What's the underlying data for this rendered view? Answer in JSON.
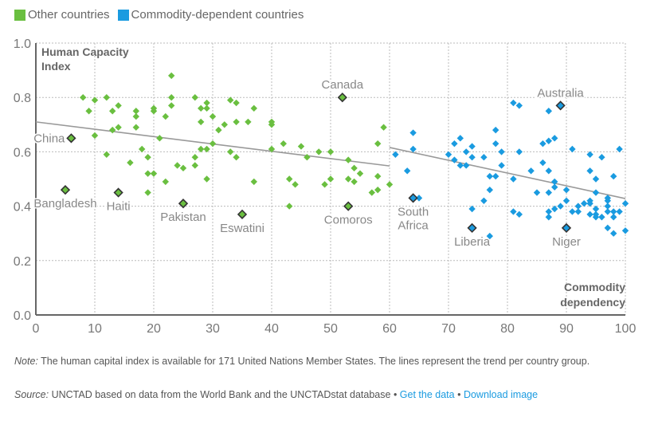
{
  "legend": [
    {
      "label": "Other countries",
      "color": "#6abf40"
    },
    {
      "label": "Commodity-dependent countries",
      "color": "#1a9be0"
    }
  ],
  "chart_data": {
    "type": "scatter",
    "title": "",
    "ylabel": "Human Capacity Index",
    "xlabel": "Commodity dependency",
    "xlim": [
      0,
      100
    ],
    "ylim": [
      0,
      1.0
    ],
    "xticks": [
      0,
      10,
      20,
      30,
      40,
      50,
      60,
      70,
      80,
      90,
      100
    ],
    "yticks": [
      "0.0",
      "0.2",
      "0.4",
      "0.6",
      "0.8",
      "1.0"
    ],
    "grid": true,
    "legend_position": "top-left",
    "series": [
      {
        "name": "Other countries",
        "color": "#6abf40",
        "points": [
          [
            8,
            0.8
          ],
          [
            10,
            0.79
          ],
          [
            12,
            0.8
          ],
          [
            9,
            0.75
          ],
          [
            13,
            0.75
          ],
          [
            14,
            0.77
          ],
          [
            17,
            0.75
          ],
          [
            17,
            0.73
          ],
          [
            20,
            0.76
          ],
          [
            20,
            0.75
          ],
          [
            13,
            0.68
          ],
          [
            14,
            0.69
          ],
          [
            17,
            0.69
          ],
          [
            10,
            0.66
          ],
          [
            12,
            0.59
          ],
          [
            18,
            0.61
          ],
          [
            16,
            0.56
          ],
          [
            19,
            0.58
          ],
          [
            19,
            0.52
          ],
          [
            20,
            0.52
          ],
          [
            19,
            0.45
          ],
          [
            23,
            0.88
          ],
          [
            23,
            0.8
          ],
          [
            23,
            0.77
          ],
          [
            22,
            0.73
          ],
          [
            27,
            0.8
          ],
          [
            28,
            0.76
          ],
          [
            29,
            0.78
          ],
          [
            29,
            0.76
          ],
          [
            28,
            0.71
          ],
          [
            30,
            0.73
          ],
          [
            33,
            0.79
          ],
          [
            34,
            0.78
          ],
          [
            37,
            0.76
          ],
          [
            32,
            0.7
          ],
          [
            31,
            0.68
          ],
          [
            34,
            0.71
          ],
          [
            36,
            0.71
          ],
          [
            21,
            0.65
          ],
          [
            30,
            0.63
          ],
          [
            28,
            0.61
          ],
          [
            29,
            0.61
          ],
          [
            33,
            0.6
          ],
          [
            34,
            0.58
          ],
          [
            27,
            0.58
          ],
          [
            24,
            0.55
          ],
          [
            25,
            0.54
          ],
          [
            27,
            0.55
          ],
          [
            22,
            0.49
          ],
          [
            29,
            0.5
          ],
          [
            37,
            0.49
          ],
          [
            40,
            0.71
          ],
          [
            40,
            0.7
          ],
          [
            59,
            0.69
          ],
          [
            42,
            0.63
          ],
          [
            45,
            0.62
          ],
          [
            40,
            0.61
          ],
          [
            48,
            0.6
          ],
          [
            50,
            0.6
          ],
          [
            58,
            0.63
          ],
          [
            46,
            0.58
          ],
          [
            53,
            0.57
          ],
          [
            54,
            0.54
          ],
          [
            55,
            0.52
          ],
          [
            43,
            0.5
          ],
          [
            44,
            0.48
          ],
          [
            49,
            0.48
          ],
          [
            50,
            0.5
          ],
          [
            53,
            0.5
          ],
          [
            54,
            0.49
          ],
          [
            58,
            0.51
          ],
          [
            57,
            0.45
          ],
          [
            58,
            0.46
          ],
          [
            60,
            0.48
          ],
          [
            43,
            0.4
          ]
        ],
        "trend": [
          [
            0,
            0.71
          ],
          [
            60,
            0.548
          ]
        ]
      },
      {
        "name": "Commodity-dependent countries",
        "color": "#1a9be0",
        "points": [
          [
            61,
            0.59
          ],
          [
            64,
            0.67
          ],
          [
            64,
            0.61
          ],
          [
            63,
            0.53
          ],
          [
            65,
            0.43
          ],
          [
            70,
            0.59
          ],
          [
            71,
            0.63
          ],
          [
            72,
            0.65
          ],
          [
            71,
            0.57
          ],
          [
            72,
            0.55
          ],
          [
            73,
            0.55
          ],
          [
            73,
            0.6
          ],
          [
            74,
            0.62
          ],
          [
            74,
            0.58
          ],
          [
            76,
            0.58
          ],
          [
            78,
            0.68
          ],
          [
            78,
            0.63
          ],
          [
            79,
            0.6
          ],
          [
            79,
            0.55
          ],
          [
            77,
            0.51
          ],
          [
            78,
            0.51
          ],
          [
            77,
            0.46
          ],
          [
            76,
            0.42
          ],
          [
            74,
            0.39
          ],
          [
            77,
            0.29
          ],
          [
            81,
            0.78
          ],
          [
            82,
            0.77
          ],
          [
            87,
            0.75
          ],
          [
            86,
            0.63
          ],
          [
            87,
            0.64
          ],
          [
            88,
            0.65
          ],
          [
            82,
            0.6
          ],
          [
            86,
            0.56
          ],
          [
            84,
            0.53
          ],
          [
            87,
            0.53
          ],
          [
            81,
            0.5
          ],
          [
            88,
            0.49
          ],
          [
            88,
            0.47
          ],
          [
            85,
            0.45
          ],
          [
            87,
            0.45
          ],
          [
            81,
            0.38
          ],
          [
            82,
            0.37
          ],
          [
            87,
            0.38
          ],
          [
            87,
            0.36
          ],
          [
            88,
            0.39
          ],
          [
            89,
            0.4
          ],
          [
            91,
            0.61
          ],
          [
            99,
            0.61
          ],
          [
            94,
            0.59
          ],
          [
            96,
            0.58
          ],
          [
            94,
            0.53
          ],
          [
            95,
            0.5
          ],
          [
            98,
            0.51
          ],
          [
            90,
            0.46
          ],
          [
            95,
            0.45
          ],
          [
            97,
            0.43
          ],
          [
            97,
            0.42
          ],
          [
            90,
            0.42
          ],
          [
            92,
            0.4
          ],
          [
            93,
            0.41
          ],
          [
            94,
            0.42
          ],
          [
            94,
            0.41
          ],
          [
            100,
            0.41
          ],
          [
            91,
            0.38
          ],
          [
            92,
            0.38
          ],
          [
            94,
            0.37
          ],
          [
            95,
            0.39
          ],
          [
            95,
            0.37
          ],
          [
            95,
            0.36
          ],
          [
            96,
            0.36
          ],
          [
            97,
            0.4
          ],
          [
            97,
            0.38
          ],
          [
            98,
            0.38
          ],
          [
            98,
            0.36
          ],
          [
            99,
            0.38
          ],
          [
            97,
            0.32
          ],
          [
            98,
            0.3
          ],
          [
            100,
            0.31
          ]
        ],
        "trend": [
          [
            60,
            0.616
          ],
          [
            100,
            0.428
          ]
        ]
      }
    ],
    "highlighted": [
      {
        "name": "China",
        "x": 6,
        "y": 0.65,
        "group": 0,
        "label_pos": "left"
      },
      {
        "name": "Bangladesh",
        "x": 5,
        "y": 0.46,
        "group": 0,
        "label_pos": "below"
      },
      {
        "name": "Haiti",
        "x": 14,
        "y": 0.45,
        "group": 0,
        "label_pos": "below"
      },
      {
        "name": "Pakistan",
        "x": 25,
        "y": 0.41,
        "group": 0,
        "label_pos": "below"
      },
      {
        "name": "Eswatini",
        "x": 35,
        "y": 0.37,
        "group": 0,
        "label_pos": "below"
      },
      {
        "name": "Canada",
        "x": 52,
        "y": 0.8,
        "group": 0,
        "label_pos": "above"
      },
      {
        "name": "Comoros",
        "x": 53,
        "y": 0.4,
        "group": 0,
        "label_pos": "below"
      },
      {
        "name": "South Africa",
        "x": 64,
        "y": 0.43,
        "group": 1,
        "label_pos": "below"
      },
      {
        "name": "Liberia",
        "x": 74,
        "y": 0.32,
        "group": 1,
        "label_pos": "below"
      },
      {
        "name": "Australia",
        "x": 89,
        "y": 0.77,
        "group": 1,
        "label_pos": "above"
      },
      {
        "name": "Niger",
        "x": 90,
        "y": 0.32,
        "group": 1,
        "label_pos": "below"
      }
    ]
  },
  "footer": {
    "note_label": "Note:",
    "note_text": " The human capital index is available for 171 United Nations Member States. The lines represent the trend per country group.",
    "source_label": "Source:",
    "source_text": " UNCTAD based on data from the World Bank and the UNCTADstat database",
    "separator": " • ",
    "link_get_data": "Get the data",
    "link_download": "Download image"
  }
}
